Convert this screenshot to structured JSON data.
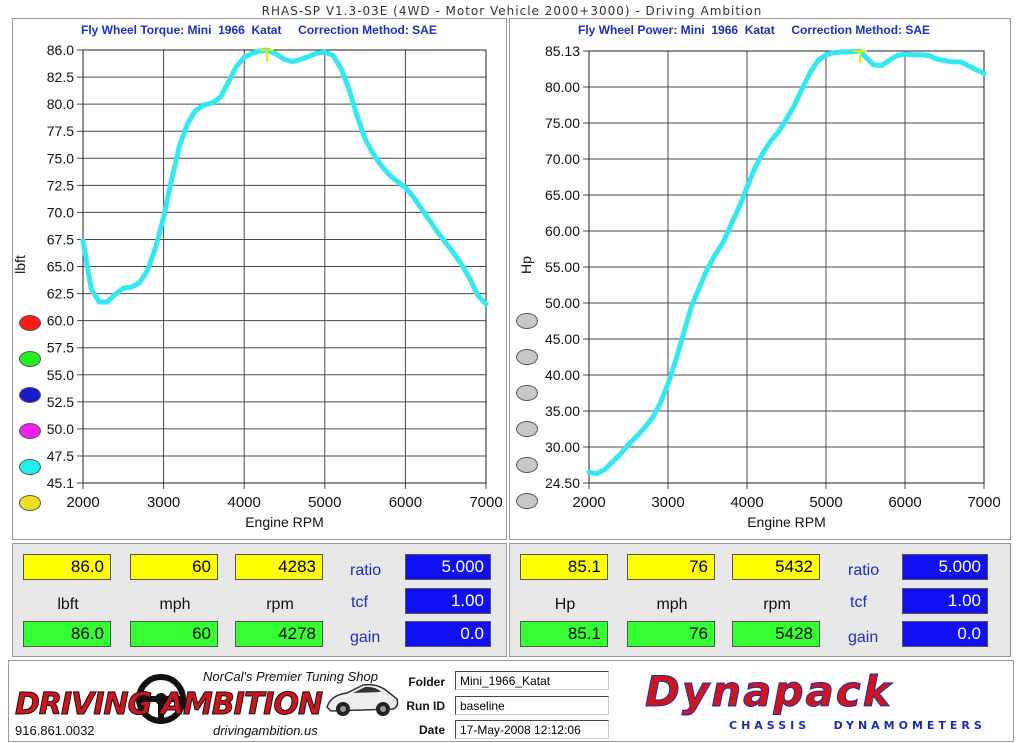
{
  "app": {
    "title": "RHAS-SP V1.3-03E  (4WD - Motor Vehicle 2000+3000) - Driving Ambition"
  },
  "torque_panel": {
    "header": "Fly Wheel Torque: Mini  1966  Katat     Correction Method: SAE",
    "xlabel": "Engine RPM",
    "ylabel": "lbft",
    "y_tick_labels": [
      "86.0",
      "82.5",
      "80.0",
      "77.5",
      "75.0",
      "72.5",
      "70.0",
      "67.5",
      "65.0",
      "62.5",
      "60.0",
      "57.5",
      "55.0",
      "52.5",
      "50.0",
      "47.5",
      "45.1"
    ],
    "x_tick_labels": [
      "2000",
      "3000",
      "4000",
      "5000",
      "6000",
      "7000"
    ],
    "run_dots": [
      {
        "color": "#ff1a1a"
      },
      {
        "color": "#22ee22"
      },
      {
        "color": "#1a1acc"
      },
      {
        "color": "#ee22ee"
      },
      {
        "color": "#22eeee"
      },
      {
        "color": "#eedd22"
      }
    ]
  },
  "power_panel": {
    "header": "Fly Wheel Power: Mini  1966  Katat     Correction Method: SAE",
    "xlabel": "Engine RPM",
    "ylabel": "Hp",
    "y_tick_labels": [
      "85.13",
      "80.00",
      "75.00",
      "70.00",
      "65.00",
      "60.00",
      "55.00",
      "50.00",
      "45.00",
      "40.00",
      "35.00",
      "30.00",
      "24.50"
    ],
    "x_tick_labels": [
      "2000",
      "3000",
      "4000",
      "5000",
      "6000",
      "7000"
    ]
  },
  "chart_data": [
    {
      "type": "line",
      "title": "Fly Wheel Torque: Mini  1966  Katat     Correction Method: SAE",
      "xlabel": "Engine RPM",
      "ylabel": "lbft",
      "xlim": [
        2000,
        7000
      ],
      "ylim": [
        45.1,
        86.0
      ],
      "grid": true,
      "series": [
        {
          "color": "#33e8f0",
          "x": [
            2000,
            2100,
            2200,
            2300,
            2400,
            2500,
            2600,
            2700,
            2800,
            2900,
            3000,
            3100,
            3200,
            3300,
            3400,
            3500,
            3600,
            3700,
            3800,
            3900,
            4000,
            4100,
            4200,
            4283,
            4400,
            4500,
            4600,
            4700,
            4800,
            4900,
            5000,
            5100,
            5200,
            5300,
            5400,
            5500,
            5600,
            5700,
            5800,
            5900,
            6000,
            6100,
            6200,
            6300,
            6400,
            6500,
            6600,
            6700,
            6800,
            6900,
            7000
          ],
          "y": [
            68.0,
            63.5,
            62.2,
            62.2,
            62.9,
            63.5,
            63.6,
            64.0,
            65.2,
            67.3,
            70.2,
            73.8,
            77.0,
            79.1,
            80.3,
            80.8,
            81.0,
            81.5,
            82.9,
            84.4,
            85.3,
            85.7,
            85.9,
            86.0,
            85.6,
            85.1,
            84.9,
            85.1,
            85.4,
            85.7,
            85.8,
            85.5,
            84.3,
            82.3,
            79.8,
            77.6,
            76.2,
            75.1,
            74.2,
            73.6,
            73.0,
            72.1,
            71.0,
            69.9,
            68.8,
            67.8,
            66.8,
            65.7,
            64.4,
            62.8,
            62.0
          ]
        }
      ]
    },
    {
      "type": "line",
      "title": "Fly Wheel Power: Mini  1966  Katat     Correction Method: SAE",
      "xlabel": "Engine RPM",
      "ylabel": "Hp",
      "xlim": [
        2000,
        7000
      ],
      "ylim": [
        24.5,
        85.13
      ],
      "grid": true,
      "series": [
        {
          "color": "#33e8f0",
          "x": [
            2000,
            2100,
            2200,
            2300,
            2400,
            2500,
            2600,
            2700,
            2800,
            2900,
            3000,
            3100,
            3200,
            3300,
            3400,
            3500,
            3600,
            3700,
            3800,
            3900,
            4000,
            4100,
            4200,
            4300,
            4400,
            4500,
            4600,
            4700,
            4800,
            4900,
            5000,
            5100,
            5200,
            5300,
            5432,
            5500,
            5600,
            5700,
            5800,
            5900,
            6000,
            6100,
            6200,
            6300,
            6400,
            6500,
            6600,
            6700,
            6800,
            6900,
            7000
          ],
          "y": [
            26.0,
            25.8,
            26.4,
            27.5,
            28.6,
            29.9,
            31.0,
            32.2,
            33.6,
            35.6,
            38.4,
            41.8,
            45.6,
            49.4,
            52.0,
            54.6,
            56.6,
            58.3,
            60.8,
            63.2,
            66.0,
            68.7,
            70.8,
            72.5,
            73.8,
            75.6,
            77.5,
            79.9,
            82.1,
            83.8,
            84.6,
            84.9,
            85.0,
            85.0,
            85.1,
            84.3,
            83.2,
            83.1,
            83.8,
            84.5,
            84.7,
            84.6,
            84.6,
            84.5,
            84.0,
            83.8,
            83.6,
            83.6,
            83.1,
            82.5,
            82.0
          ]
        }
      ]
    }
  ],
  "readouts": {
    "torque": {
      "peak_value": "86.0",
      "peak_mph": "60",
      "peak_rpm": "4283",
      "cur_value": "86.0",
      "cur_mph": "60",
      "cur_rpm": "4278",
      "unit_value": "lbft",
      "unit_mph": "mph",
      "unit_rpm": "rpm",
      "ratio_label": "ratio",
      "ratio_value": "5.000",
      "tcf_label": "tcf",
      "tcf_value": "1.00",
      "gain_label": "gain",
      "gain_value": "0.0"
    },
    "power": {
      "peak_value": "85.1",
      "peak_mph": "76",
      "peak_rpm": "5432",
      "cur_value": "85.1",
      "cur_mph": "76",
      "cur_rpm": "5428",
      "unit_value": "Hp",
      "unit_mph": "mph",
      "unit_rpm": "rpm",
      "ratio_label": "ratio",
      "ratio_value": "5.000",
      "tcf_label": "tcf",
      "tcf_value": "1.00",
      "gain_label": "gain",
      "gain_value": "0.0"
    }
  },
  "footer": {
    "shop_logo_text": "DRIVING AMBITION",
    "shop_tagline": "NorCal's Premier Tuning Shop",
    "shop_phone": "916.861.0032",
    "shop_url": "drivingambition.us",
    "folder_label": "Folder",
    "folder_value": "Mini_1966_Katat",
    "runid_label": "Run ID",
    "runid_value": "baseline",
    "date_label": "Date",
    "date_value": "17-May-2008   12:12:06",
    "dyn_logo_text": "Dynapack",
    "dyn_sub_text": "CHASSIS   DYNAMOMETERS"
  },
  "colors": {
    "curve": "#33e8f0",
    "header_blue": "#1b2fc8",
    "peak_yellow": "#ffff00",
    "current_green": "#33ff33",
    "param_blue": "#1010f0",
    "dyn_red": "#d0141e",
    "dyn_blue": "#1b2fa8"
  }
}
